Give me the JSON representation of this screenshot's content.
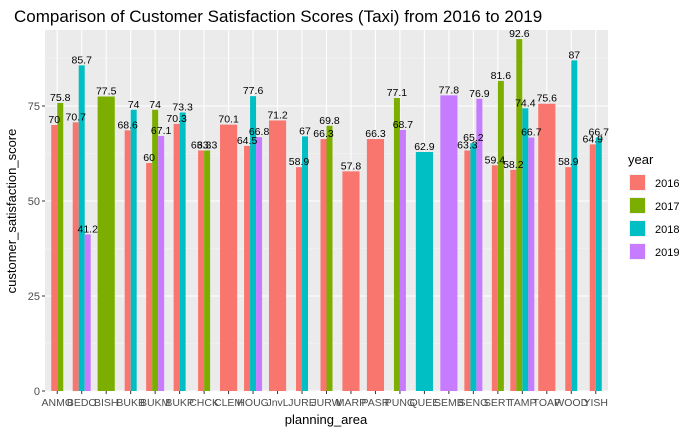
{
  "chart_data": {
    "type": "bar",
    "title": "Comparison of Customer Satisfaction Scores (Taxi) from 2016 to 2019",
    "xlabel": "planning_area",
    "ylabel": "customer_satisfaction_score",
    "ylim": [
      0,
      95
    ],
    "yticks": [
      0,
      25,
      50,
      75
    ],
    "grid": true,
    "legend_title": "year",
    "legend_position": "right",
    "categories": [
      "ANMO",
      "BEDO",
      "BISH",
      "BUKB",
      "BUKM",
      "BUKP",
      "CHCK",
      "CLEM",
      "HOUG",
      "JnvL",
      "JURE",
      "JURW",
      "MARP",
      "PASR",
      "PUNG",
      "QUEE",
      "SEMB",
      "SENG",
      "SERT",
      "TAMP",
      "TOAP",
      "WOOD",
      "YISH"
    ],
    "series": [
      {
        "name": "2016",
        "color": "#F8766D",
        "values": [
          70,
          70.7,
          null,
          68.6,
          60,
          70.3,
          63.3,
          70.1,
          64.5,
          71.2,
          58.9,
          66.3,
          57.8,
          66.3,
          null,
          null,
          null,
          63.3,
          59.4,
          58.2,
          75.6,
          58.9,
          64.9
        ]
      },
      {
        "name": "2017",
        "color": "#7CAE00",
        "values": [
          75.8,
          null,
          77.5,
          null,
          74,
          null,
          63.3,
          null,
          null,
          null,
          null,
          69.8,
          null,
          null,
          77.1,
          null,
          null,
          null,
          81.6,
          92.6,
          null,
          null,
          null
        ]
      },
      {
        "name": "2018",
        "color": "#00BFC4",
        "values": [
          null,
          85.7,
          null,
          74,
          null,
          73.3,
          null,
          null,
          77.6,
          null,
          67,
          null,
          null,
          null,
          null,
          62.9,
          null,
          65.2,
          null,
          74.4,
          null,
          87,
          66.7
        ]
      },
      {
        "name": "2019",
        "color": "#C77CFF",
        "values": [
          null,
          41.2,
          null,
          null,
          67.1,
          null,
          null,
          null,
          66.8,
          null,
          null,
          null,
          null,
          null,
          68.7,
          null,
          77.8,
          76.9,
          null,
          66.7,
          null,
          null,
          null
        ]
      }
    ]
  }
}
